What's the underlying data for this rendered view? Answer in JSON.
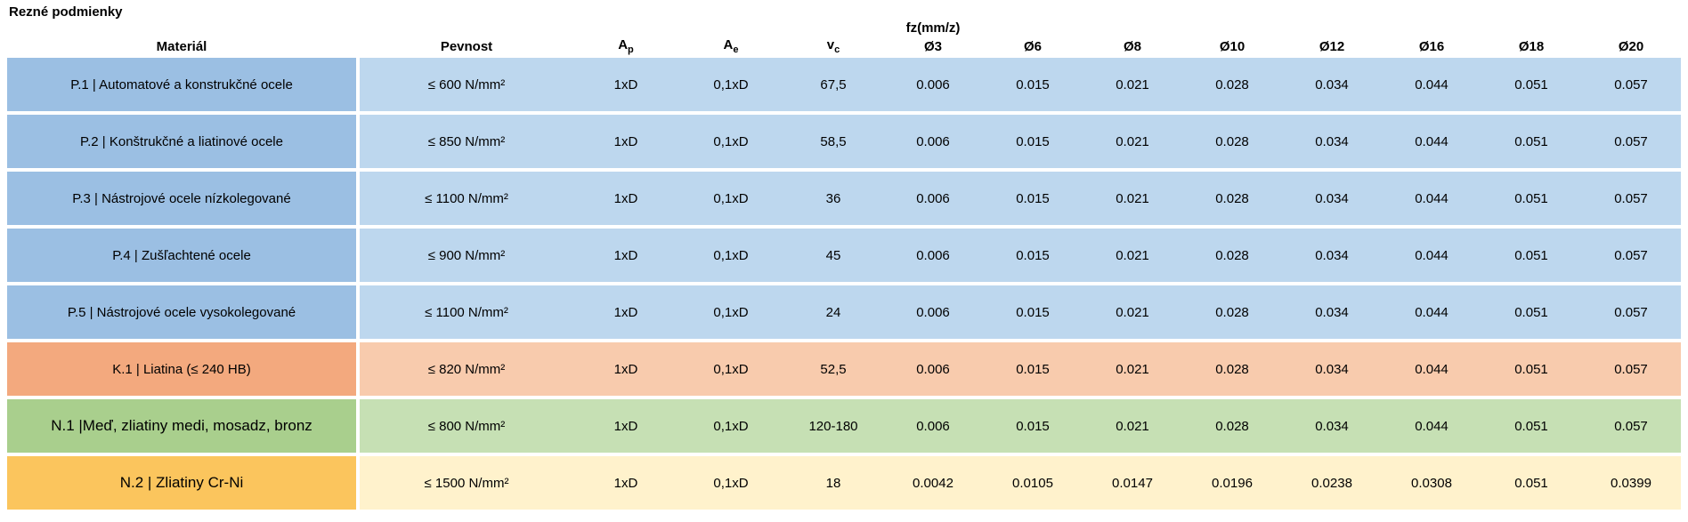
{
  "title": "Rezné podmienky",
  "table": {
    "headers": {
      "material": "Materiál",
      "pevnost": "Pevnost",
      "ap": {
        "base": "A",
        "sub": "p"
      },
      "ae": {
        "base": "A",
        "sub": "e"
      },
      "vc": {
        "base": "v",
        "sub": "c"
      },
      "fz": "fz(mm/z)"
    },
    "diameters": [
      "Ø3",
      "Ø6",
      "Ø8",
      "Ø10",
      "Ø12",
      "Ø16",
      "Ø18",
      "Ø20"
    ],
    "rows": [
      {
        "material": "P.1 | Automatové a konstrukčné ocele",
        "pevnost": "≤ 600 N/mm²",
        "ap": "1xD",
        "ae": "0,1xD",
        "vc": "67,5",
        "fz": [
          "0.006",
          "0.015",
          "0.021",
          "0.028",
          "0.034",
          "0.044",
          "0.051",
          "0.057"
        ],
        "color_accent": "#9BBFE3",
        "color_light": "#BDD7EE"
      },
      {
        "material": "P.2 | Konštrukčné a liatinové ocele",
        "pevnost": "≤ 850 N/mm²",
        "ap": "1xD",
        "ae": "0,1xD",
        "vc": "58,5",
        "fz": [
          "0.006",
          "0.015",
          "0.021",
          "0.028",
          "0.034",
          "0.044",
          "0.051",
          "0.057"
        ],
        "color_accent": "#9BBFE3",
        "color_light": "#BDD7EE"
      },
      {
        "material": "P.3 | Nástrojové ocele nízkolegované",
        "pevnost": "≤ 1100 N/mm²",
        "ap": "1xD",
        "ae": "0,1xD",
        "vc": "36",
        "fz": [
          "0.006",
          "0.015",
          "0.021",
          "0.028",
          "0.034",
          "0.044",
          "0.051",
          "0.057"
        ],
        "color_accent": "#9BBFE3",
        "color_light": "#BDD7EE"
      },
      {
        "material": "P.4 | Zušľachtené ocele",
        "pevnost": "≤ 900 N/mm²",
        "ap": "1xD",
        "ae": "0,1xD",
        "vc": "45",
        "fz": [
          "0.006",
          "0.015",
          "0.021",
          "0.028",
          "0.034",
          "0.044",
          "0.051",
          "0.057"
        ],
        "color_accent": "#9BBFE3",
        "color_light": "#BDD7EE"
      },
      {
        "material": "P.5 | Nástrojové ocele vysokolegované",
        "pevnost": "≤ 1100 N/mm²",
        "ap": "1xD",
        "ae": "0,1xD",
        "vc": "24",
        "fz": [
          "0.006",
          "0.015",
          "0.021",
          "0.028",
          "0.034",
          "0.044",
          "0.051",
          "0.057"
        ],
        "color_accent": "#9BBFE3",
        "color_light": "#BDD7EE"
      },
      {
        "material": "K.1 | Liatina (≤ 240 HB)",
        "pevnost": "≤ 820 N/mm²",
        "ap": "1xD",
        "ae": "0,1xD",
        "vc": "52,5",
        "fz": [
          "0.006",
          "0.015",
          "0.021",
          "0.028",
          "0.034",
          "0.044",
          "0.051",
          "0.057"
        ],
        "color_accent": "#F3A97E",
        "color_light": "#F8CBAD"
      },
      {
        "material": "N.1 |Meď, zliatiny medi, mosadz, bronz",
        "pevnost": "≤ 800 N/mm²",
        "ap": "1xD",
        "ae": "0,1xD",
        "vc": "120-180",
        "fz": [
          "0.006",
          "0.015",
          "0.021",
          "0.028",
          "0.034",
          "0.044",
          "0.051",
          "0.057"
        ],
        "color_accent": "#A9CF8D",
        "color_light": "#C6E0B4"
      },
      {
        "material": "N.2 | Zliatiny Cr-Ni",
        "pevnost": "≤ 1500 N/mm²",
        "ap": "1xD",
        "ae": "0,1xD",
        "vc": "18",
        "fz": [
          "0.0042",
          "0.0105",
          "0.0147",
          "0.0196",
          "0.0238",
          "0.0308",
          "0.051",
          "0.0399"
        ],
        "color_accent": "#FBC55D",
        "color_light": "#FFF2CC"
      }
    ]
  }
}
